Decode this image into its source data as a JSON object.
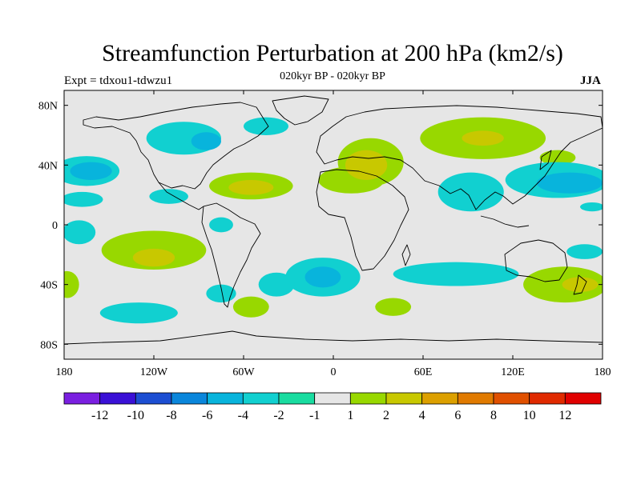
{
  "title": "Streamfunction Perturbation at 200 hPa (km2/s)",
  "subtitle": "020kyr BP - 020kyr BP",
  "expt": "Expt = tdxou1-tdwzu1",
  "season": "JJA",
  "axes": {
    "x_ticks": [
      {
        "lon": -180,
        "label": "180"
      },
      {
        "lon": -120,
        "label": "120W"
      },
      {
        "lon": -60,
        "label": "60W"
      },
      {
        "lon": 0,
        "label": "0"
      },
      {
        "lon": 60,
        "label": "60E"
      },
      {
        "lon": 120,
        "label": "120E"
      },
      {
        "lon": 180,
        "label": "180"
      }
    ],
    "y_ticks": [
      {
        "lat": 80,
        "label": "80N"
      },
      {
        "lat": 40,
        "label": "40N"
      },
      {
        "lat": 0,
        "label": "0"
      },
      {
        "lat": -40,
        "label": "40S"
      },
      {
        "lat": -80,
        "label": "80S"
      }
    ]
  },
  "colorbar": {
    "labels": [
      "-12",
      "-10",
      "-8",
      "-6",
      "-4",
      "-2",
      "-1",
      "1",
      "2",
      "4",
      "6",
      "8",
      "10",
      "12"
    ],
    "colors": [
      "#7a1fe0",
      "#3a10d6",
      "#1c4ed2",
      "#0a86db",
      "#08b4dc",
      "#11d0d0",
      "#19dca0",
      "#e6e6e6",
      "#98d800",
      "#c8c800",
      "#dca000",
      "#e07a00",
      "#e05000",
      "#e02a00",
      "#e00000"
    ]
  },
  "fields": [
    {
      "lon": -100,
      "lat": 58,
      "rx": 25,
      "ry": 11,
      "level": -2
    },
    {
      "lon": -85,
      "lat": 56,
      "rx": 10,
      "ry": 6,
      "level": -4
    },
    {
      "lon": -165,
      "lat": 36,
      "rx": 22,
      "ry": 10,
      "level": -2
    },
    {
      "lon": -162,
      "lat": 36,
      "rx": 14,
      "ry": 6,
      "level": -4
    },
    {
      "lon": -168,
      "lat": 17,
      "rx": 14,
      "ry": 5,
      "level": -2
    },
    {
      "lon": -110,
      "lat": 19,
      "rx": 13,
      "ry": 5,
      "level": -2
    },
    {
      "lon": -45,
      "lat": 66,
      "rx": 15,
      "ry": 6,
      "level": -2
    },
    {
      "lon": -55,
      "lat": 26,
      "rx": 28,
      "ry": 9,
      "level": 1
    },
    {
      "lon": -55,
      "lat": 25,
      "rx": 15,
      "ry": 5,
      "level": 2
    },
    {
      "lon": 12,
      "lat": 30,
      "rx": 22,
      "ry": 9,
      "level": 1
    },
    {
      "lon": 25,
      "lat": 42,
      "rx": 22,
      "ry": 16,
      "level": 1
    },
    {
      "lon": 22,
      "lat": 40,
      "rx": 14,
      "ry": 10,
      "level": 2
    },
    {
      "lon": 100,
      "lat": 58,
      "rx": 42,
      "ry": 14,
      "level": 1
    },
    {
      "lon": 100,
      "lat": 58,
      "rx": 14,
      "ry": 5,
      "level": 2
    },
    {
      "lon": 150,
      "lat": 45,
      "rx": 12,
      "ry": 5,
      "level": 1
    },
    {
      "lon": 92,
      "lat": 22,
      "rx": 22,
      "ry": 13,
      "level": -2
    },
    {
      "lon": 150,
      "lat": 30,
      "rx": 35,
      "ry": 12,
      "level": -2
    },
    {
      "lon": 158,
      "lat": 28,
      "rx": 22,
      "ry": 7,
      "level": -4
    },
    {
      "lon": 173,
      "lat": 12,
      "rx": 8,
      "ry": 3,
      "level": -2
    },
    {
      "lon": -170,
      "lat": -5,
      "rx": 11,
      "ry": 8,
      "level": -2
    },
    {
      "lon": -75,
      "lat": 0,
      "rx": 8,
      "ry": 5,
      "level": -2
    },
    {
      "lon": -120,
      "lat": -17,
      "rx": 35,
      "ry": 13,
      "level": 1
    },
    {
      "lon": -120,
      "lat": -22,
      "rx": 14,
      "ry": 6,
      "level": 2
    },
    {
      "lon": -7,
      "lat": -35,
      "rx": 25,
      "ry": 13,
      "level": -2
    },
    {
      "lon": -7,
      "lat": -35,
      "rx": 12,
      "ry": 7,
      "level": -4
    },
    {
      "lon": -38,
      "lat": -40,
      "rx": 12,
      "ry": 8,
      "level": -2
    },
    {
      "lon": 82,
      "lat": -33,
      "rx": 42,
      "ry": 8,
      "level": -2
    },
    {
      "lon": 40,
      "lat": -55,
      "rx": 12,
      "ry": 6,
      "level": 1
    },
    {
      "lon": 155,
      "lat": -40,
      "rx": 28,
      "ry": 12,
      "level": 1
    },
    {
      "lon": 165,
      "lat": -40,
      "rx": 12,
      "ry": 5,
      "level": 2
    },
    {
      "lon": 168,
      "lat": -18,
      "rx": 12,
      "ry": 5,
      "level": -2
    },
    {
      "lon": -178,
      "lat": -40,
      "rx": 8,
      "ry": 9,
      "level": 1
    },
    {
      "lon": -130,
      "lat": -59,
      "rx": 26,
      "ry": 7,
      "level": -2
    },
    {
      "lon": -75,
      "lat": -46,
      "rx": 10,
      "ry": 6,
      "level": -2
    },
    {
      "lon": -55,
      "lat": -55,
      "rx": 12,
      "ry": 7,
      "level": 1
    }
  ]
}
